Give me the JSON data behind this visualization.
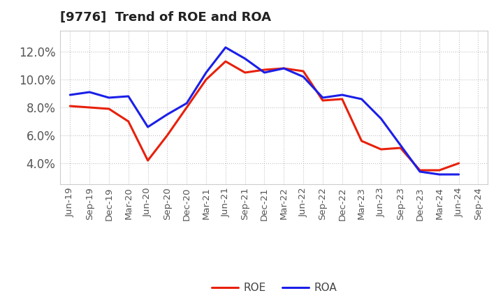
{
  "title": "[9776]  Trend of ROE and ROA",
  "x_labels": [
    "Jun-19",
    "Sep-19",
    "Dec-19",
    "Mar-20",
    "Jun-20",
    "Sep-20",
    "Dec-20",
    "Mar-21",
    "Jun-21",
    "Sep-21",
    "Dec-21",
    "Mar-22",
    "Jun-22",
    "Sep-22",
    "Dec-22",
    "Mar-23",
    "Jun-23",
    "Sep-23",
    "Dec-23",
    "Mar-24",
    "Jun-24",
    "Sep-24"
  ],
  "roe": [
    8.1,
    8.0,
    7.9,
    7.0,
    4.2,
    6.0,
    8.0,
    10.0,
    11.3,
    10.5,
    10.7,
    10.8,
    10.6,
    8.5,
    8.6,
    5.6,
    5.0,
    5.1,
    3.5,
    3.5,
    4.0,
    null
  ],
  "roa": [
    8.9,
    9.1,
    8.7,
    8.8,
    6.6,
    7.5,
    8.3,
    10.5,
    12.3,
    11.5,
    10.5,
    10.8,
    10.2,
    8.7,
    8.9,
    8.6,
    7.2,
    5.3,
    3.4,
    3.2,
    3.2,
    null
  ],
  "roe_color": "#e8200a",
  "roa_color": "#1b1fe8",
  "ylim": [
    2.5,
    13.5
  ],
  "yticks": [
    4.0,
    6.0,
    8.0,
    10.0,
    12.0
  ],
  "background_color": "#ffffff",
  "grid_color": "#bbbbbb",
  "title_fontsize": 13,
  "legend_fontsize": 11,
  "axis_fontsize": 9.5,
  "ytick_fontsize": 12,
  "line_width": 2.2
}
